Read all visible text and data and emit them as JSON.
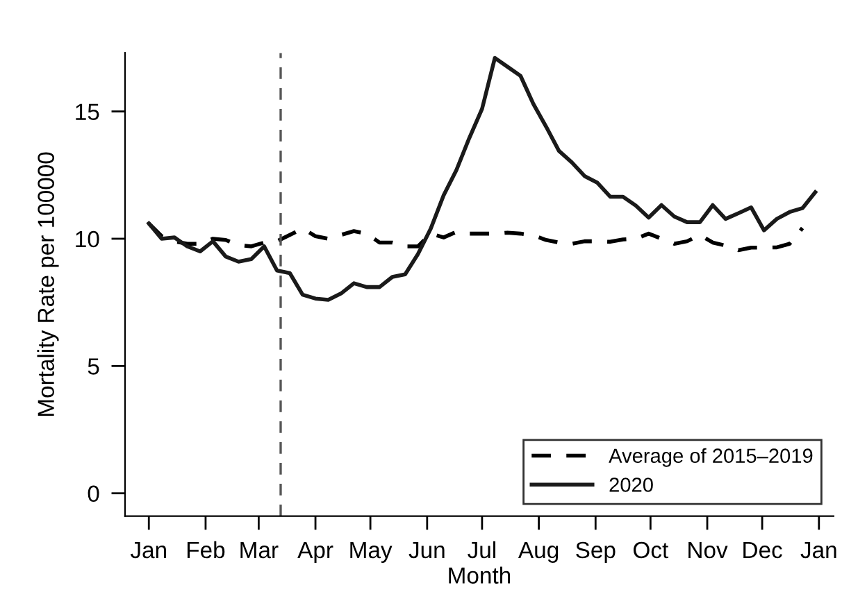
{
  "chart_data": {
    "type": "line",
    "xlabel": "Month",
    "ylabel": "Mortality Rate per 100000",
    "x": [
      "2020-01-01",
      "2020-01-08",
      "2020-01-15",
      "2020-01-22",
      "2020-01-29",
      "2020-02-05",
      "2020-02-12",
      "2020-02-19",
      "2020-02-26",
      "2020-03-04",
      "2020-03-11",
      "2020-03-18",
      "2020-03-25",
      "2020-04-01",
      "2020-04-08",
      "2020-04-15",
      "2020-04-22",
      "2020-04-29",
      "2020-05-06",
      "2020-05-13",
      "2020-05-20",
      "2020-05-27",
      "2020-06-03",
      "2020-06-10",
      "2020-06-17",
      "2020-06-24",
      "2020-07-01",
      "2020-07-08",
      "2020-07-15",
      "2020-07-22",
      "2020-07-29",
      "2020-08-05",
      "2020-08-12",
      "2020-08-19",
      "2020-08-26",
      "2020-09-02",
      "2020-09-09",
      "2020-09-16",
      "2020-09-23",
      "2020-09-30",
      "2020-10-07",
      "2020-10-14",
      "2020-10-21",
      "2020-10-28",
      "2020-11-04",
      "2020-11-11",
      "2020-11-18",
      "2020-11-25",
      "2020-12-02",
      "2020-12-09",
      "2020-12-16",
      "2020-12-23",
      "2020-12-30"
    ],
    "series": [
      {
        "name": "Average of 2015–2019",
        "color": "#000000",
        "line_style": "dashed",
        "values": [
          10.6,
          10.1,
          9.9,
          9.8,
          9.8,
          10.0,
          9.95,
          9.75,
          9.7,
          9.85,
          9.9,
          10.15,
          10.4,
          10.1,
          10.0,
          10.15,
          10.3,
          10.2,
          9.85,
          9.85,
          9.7,
          9.7,
          10.2,
          10.05,
          10.27,
          10.2,
          10.2,
          10.2,
          10.24,
          10.2,
          10.13,
          9.95,
          9.85,
          9.8,
          9.9,
          9.9,
          9.88,
          9.97,
          10.0,
          10.2,
          10.0,
          9.8,
          9.9,
          10.15,
          9.85,
          9.73,
          9.55,
          9.65,
          9.65,
          9.66,
          9.8,
          10.42,
          null
        ]
      },
      {
        "name": "2020",
        "color": "#1a1a1a",
        "line_style": "solid",
        "values": [
          10.6,
          10.0,
          10.05,
          9.7,
          9.5,
          9.9,
          9.3,
          9.1,
          9.2,
          9.7,
          8.75,
          8.65,
          7.8,
          7.65,
          7.6,
          7.85,
          8.25,
          8.1,
          8.1,
          8.5,
          8.6,
          9.4,
          10.4,
          11.7,
          12.7,
          13.95,
          15.1,
          17.1,
          16.75,
          16.4,
          15.3,
          14.4,
          13.45,
          13.0,
          12.46,
          12.2,
          11.65,
          11.65,
          11.3,
          10.83,
          11.32,
          10.87,
          10.65,
          10.65,
          11.32,
          10.78,
          11.0,
          11.23,
          10.33,
          10.78,
          11.05,
          11.2,
          11.83
        ]
      }
    ],
    "xlim": [
      "2019-12-19",
      "2021-01-09"
    ],
    "xticks": [
      {
        "value": "2020-01-01",
        "label": "Jan"
      },
      {
        "value": "2020-02-01",
        "label": "Feb"
      },
      {
        "value": "2020-03-01",
        "label": "Mar"
      },
      {
        "value": "2020-04-01",
        "label": "Apr"
      },
      {
        "value": "2020-05-01",
        "label": "May"
      },
      {
        "value": "2020-06-01",
        "label": "Jun"
      },
      {
        "value": "2020-07-01",
        "label": "Jul"
      },
      {
        "value": "2020-08-01",
        "label": "Aug"
      },
      {
        "value": "2020-09-01",
        "label": "Sep"
      },
      {
        "value": "2020-10-01",
        "label": "Oct"
      },
      {
        "value": "2020-11-01",
        "label": "Nov"
      },
      {
        "value": "2020-12-01",
        "label": "Dec"
      },
      {
        "value": "2021-01-01",
        "label": "Jan"
      }
    ],
    "ylim": [
      -0.9,
      17.3
    ],
    "yticks": [
      0,
      5,
      10,
      15
    ],
    "ref_lines": [
      {
        "axis": "x",
        "value": "2020-03-13",
        "color": "#555555",
        "line_style": "dashed"
      }
    ],
    "grid": false,
    "legend": "bottom right",
    "marker": "none"
  }
}
